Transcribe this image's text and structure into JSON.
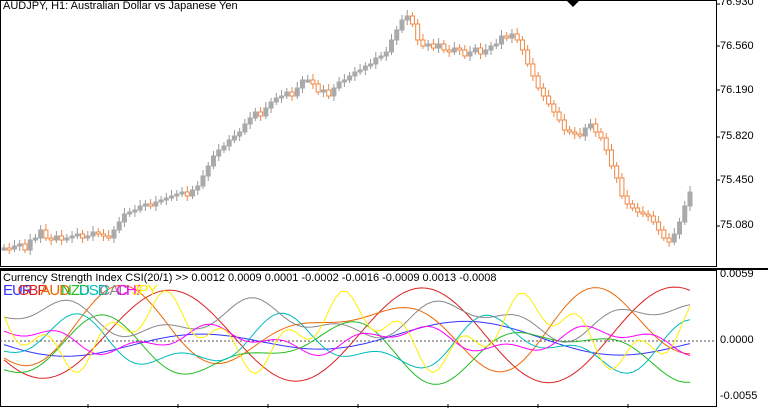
{
  "window": {
    "symbol": "AUDJPY",
    "timeframe": "H1",
    "title": "AUDJPY, H1:  Australian Dollar vs Japanese Yen"
  },
  "price_axis": {
    "labels": [
      "76.930",
      "76.560",
      "76.190",
      "75.820",
      "75.450",
      "75.080"
    ]
  },
  "indicator": {
    "title": "Currency Strength Index CSI(20/1) >> 0.0012 0.0009 0.0001 -0.0002 -0.0016 -0.0009 0.0013 -0.0008",
    "axis_labels": [
      "0.0059",
      "0.0000",
      "-0.0055"
    ],
    "legend": [
      {
        "code": "EUR",
        "color": "#3333ff"
      },
      {
        "code": "GBP",
        "color": "#dd2222"
      },
      {
        "code": "AUD",
        "color": "#ee6600"
      },
      {
        "code": "NZD",
        "color": "#22bb22"
      },
      {
        "code": "USD",
        "color": "#00bbbb"
      },
      {
        "code": "CAD",
        "color": "#888888"
      },
      {
        "code": "CHF",
        "color": "#ff00ff"
      },
      {
        "code": "JPY",
        "color": "#ffee00"
      }
    ]
  },
  "colors": {
    "bull": "#aaaaaa",
    "bear": "#ee8844",
    "grid_zero": "#555555",
    "separator": "#000000"
  }
}
